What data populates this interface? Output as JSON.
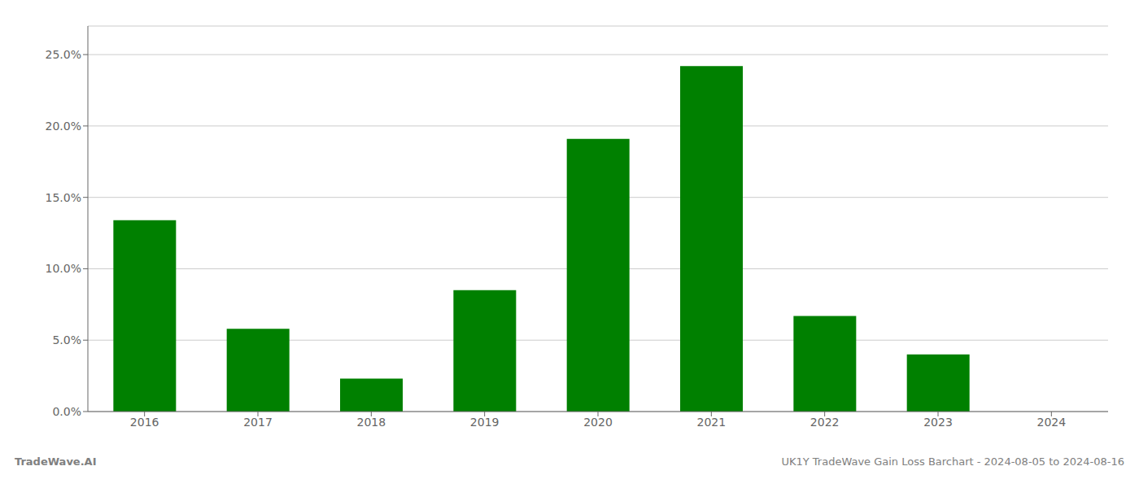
{
  "chart_data": {
    "type": "bar",
    "categories": [
      "2016",
      "2017",
      "2018",
      "2019",
      "2020",
      "2021",
      "2022",
      "2023",
      "2024"
    ],
    "values": [
      0.134,
      0.058,
      0.023,
      0.085,
      0.191,
      0.242,
      0.067,
      0.04,
      0.0
    ],
    "color": "#008000",
    "ylim": [
      0,
      0.27
    ],
    "yticks": [
      {
        "value": 0.0,
        "label": "0.0%"
      },
      {
        "value": 0.05,
        "label": "5.0%"
      },
      {
        "value": 0.1,
        "label": "10.0%"
      },
      {
        "value": 0.15,
        "label": "15.0%"
      },
      {
        "value": 0.2,
        "label": "20.0%"
      },
      {
        "value": 0.25,
        "label": "25.0%"
      }
    ],
    "grid": true,
    "annotations": [
      "TradeWave.AI",
      "UK1Y TradeWave Gain Loss Barchart - 2024-08-05 to 2024-08-16"
    ]
  }
}
